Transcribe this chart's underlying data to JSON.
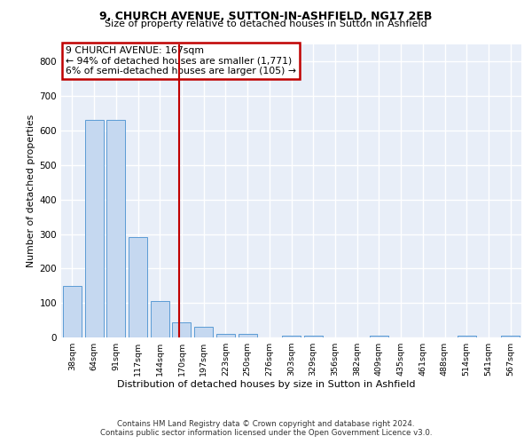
{
  "title1": "9, CHURCH AVENUE, SUTTON-IN-ASHFIELD, NG17 2EB",
  "title2": "Size of property relative to detached houses in Sutton in Ashfield",
  "xlabel": "Distribution of detached houses by size in Sutton in Ashfield",
  "ylabel": "Number of detached properties",
  "categories": [
    "38sqm",
    "64sqm",
    "91sqm",
    "117sqm",
    "144sqm",
    "170sqm",
    "197sqm",
    "223sqm",
    "250sqm",
    "276sqm",
    "303sqm",
    "329sqm",
    "356sqm",
    "382sqm",
    "409sqm",
    "435sqm",
    "461sqm",
    "488sqm",
    "514sqm",
    "541sqm",
    "567sqm"
  ],
  "values": [
    150,
    632,
    630,
    290,
    105,
    45,
    30,
    10,
    10,
    0,
    5,
    5,
    0,
    0,
    5,
    0,
    0,
    0,
    5,
    0,
    5
  ],
  "bar_color": "#c5d8f0",
  "bar_edge_color": "#5b9bd5",
  "annotation_title": "9 CHURCH AVENUE: 167sqm",
  "annotation_line1": "← 94% of detached houses are smaller (1,771)",
  "annotation_line2": "6% of semi-detached houses are larger (105) →",
  "annotation_box_color": "#c00000",
  "vline_color": "#c00000",
  "footer1": "Contains HM Land Registry data © Crown copyright and database right 2024.",
  "footer2": "Contains public sector information licensed under the Open Government Licence v3.0.",
  "ylim": [
    0,
    850
  ],
  "yticks": [
    0,
    100,
    200,
    300,
    400,
    500,
    600,
    700,
    800
  ],
  "bg_color": "#e8eef8",
  "grid_color": "#ffffff"
}
